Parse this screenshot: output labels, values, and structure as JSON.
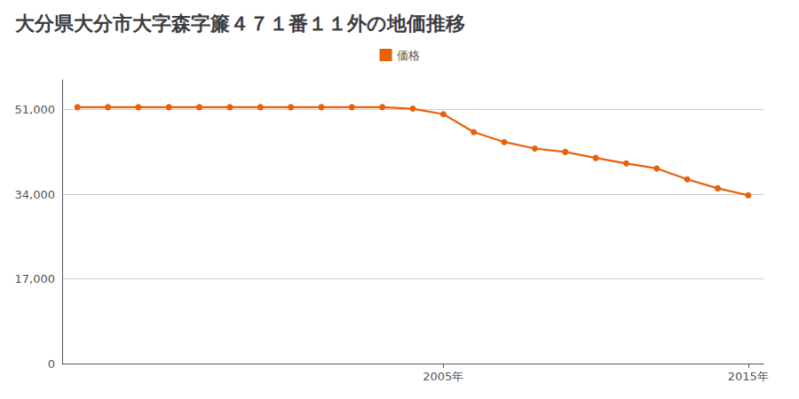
{
  "chart_data": {
    "type": "line",
    "title": "大分県大分市大字森字簾４７１番１１外の地価推移",
    "x": [
      1993,
      1994,
      1995,
      1996,
      1997,
      1998,
      1999,
      2000,
      2001,
      2002,
      2003,
      2004,
      2005,
      2006,
      2007,
      2008,
      2009,
      2010,
      2011,
      2012,
      2013,
      2014,
      2015
    ],
    "series": [
      {
        "name": "価格",
        "color": "#e8600a",
        "marker": "circle",
        "values": [
          51500,
          51500,
          51500,
          51500,
          51500,
          51500,
          51500,
          51500,
          51500,
          51500,
          51500,
          51200,
          50100,
          46500,
          44500,
          43200,
          42500,
          41300,
          40200,
          39200,
          37000,
          35200,
          33800
        ]
      }
    ],
    "xlim": [
      1992.5,
      2015.5
    ],
    "xticks": [
      {
        "value": 2005,
        "label": "2005年"
      },
      {
        "value": 2015,
        "label": "2015年"
      }
    ],
    "ylim": [
      0,
      57000
    ],
    "yticks": [
      0,
      {
        "value": 17000,
        "label": "17,000"
      },
      {
        "value": 34000,
        "label": "34,000"
      },
      {
        "value": 51000,
        "label": "51,000"
      }
    ],
    "grid": true,
    "legend": "top"
  }
}
